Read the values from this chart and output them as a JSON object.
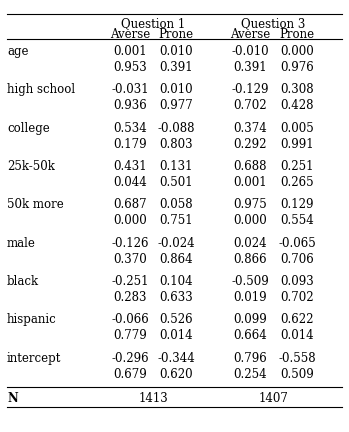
{
  "col_group_labels": [
    "Question 1",
    "Question 3"
  ],
  "col_headers": [
    "Averse",
    "Prone",
    "Averse",
    "Prone"
  ],
  "row_labels": [
    "age",
    "high school",
    "college",
    "25k-50k",
    "50k more",
    "male",
    "black",
    "hispanic",
    "intercept"
  ],
  "data": [
    [
      "0.001",
      "0.010",
      "-0.010",
      "0.000"
    ],
    [
      "0.953",
      "0.391",
      "0.391",
      "0.976"
    ],
    [
      "-0.031",
      "0.010",
      "-0.129",
      "0.308"
    ],
    [
      "0.936",
      "0.977",
      "0.702",
      "0.428"
    ],
    [
      "0.534",
      "-0.088",
      "0.374",
      "0.005"
    ],
    [
      "0.179",
      "0.803",
      "0.292",
      "0.991"
    ],
    [
      "0.431",
      "0.131",
      "0.688",
      "0.251"
    ],
    [
      "0.044",
      "0.501",
      "0.001",
      "0.265"
    ],
    [
      "0.687",
      "0.058",
      "0.975",
      "0.129"
    ],
    [
      "0.000",
      "0.751",
      "0.000",
      "0.554"
    ],
    [
      "-0.126",
      "-0.024",
      "0.024",
      "-0.065"
    ],
    [
      "0.370",
      "0.864",
      "0.866",
      "0.706"
    ],
    [
      "-0.251",
      "0.104",
      "-0.509",
      "0.093"
    ],
    [
      "0.283",
      "0.633",
      "0.019",
      "0.702"
    ],
    [
      "-0.066",
      "0.526",
      "0.099",
      "0.622"
    ],
    [
      "0.779",
      "0.014",
      "0.664",
      "0.014"
    ],
    [
      "-0.296",
      "-0.344",
      "0.796",
      "-0.558"
    ],
    [
      "0.679",
      "0.620",
      "0.254",
      "0.509"
    ]
  ],
  "n_label": "N",
  "n_q1": "1413",
  "n_q3": "1407",
  "background_color": "#ffffff",
  "text_color": "#000000",
  "fontsize": 8.5,
  "line_color": "#000000"
}
